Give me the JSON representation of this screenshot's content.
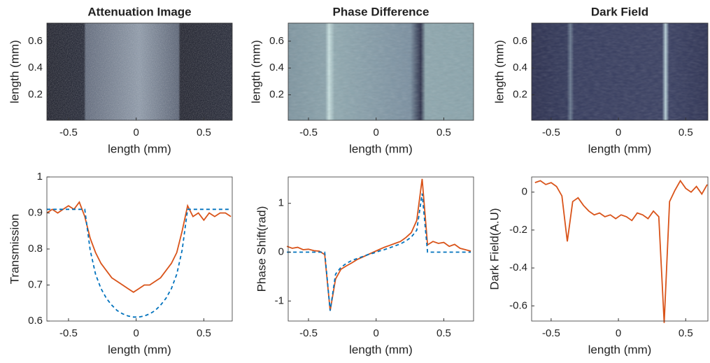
{
  "chart_data": [
    {
      "type": "image",
      "title": "Attenuation Image",
      "xlabel": "length (mm)",
      "ylabel": "length (mm)",
      "xlim": [
        -0.66,
        0.71
      ],
      "ylim": [
        0.01,
        0.735
      ],
      "xticks": [
        -0.5,
        0,
        0.5
      ],
      "yticks": [
        0.2,
        0.4,
        0.6
      ]
    },
    {
      "type": "image",
      "title": "Phase Difference",
      "xlabel": "length (mm)",
      "ylabel": "length (mm)",
      "xlim": [
        -0.65,
        0.72
      ],
      "ylim": [
        0.01,
        0.735
      ],
      "xticks": [
        -0.5,
        0,
        0.5
      ],
      "yticks": [
        0.2,
        0.4,
        0.6
      ]
    },
    {
      "type": "image",
      "title": "Dark Field",
      "xlabel": "length (mm)",
      "ylabel": "length (mm)",
      "xlim": [
        -0.645,
        0.665
      ],
      "ylim": [
        0.01,
        0.735
      ],
      "xticks": [
        -0.5,
        0,
        0.5
      ],
      "yticks": [
        0.2,
        0.4,
        0.6
      ]
    },
    {
      "type": "line",
      "xlabel": "length (mm)",
      "ylabel": "Transmission",
      "xlim": [
        -0.66,
        0.71
      ],
      "ylim": [
        0.6,
        1
      ],
      "xticks": [
        -0.5,
        0,
        0.5
      ],
      "yticks": [
        0.6,
        0.7,
        0.8,
        0.9,
        1
      ],
      "x": [
        -0.66,
        -0.62,
        -0.58,
        -0.54,
        -0.5,
        -0.46,
        -0.42,
        -0.38,
        -0.34,
        -0.3,
        -0.26,
        -0.22,
        -0.18,
        -0.14,
        -0.1,
        -0.06,
        -0.02,
        0.02,
        0.06,
        0.1,
        0.14,
        0.18,
        0.22,
        0.26,
        0.3,
        0.34,
        0.38,
        0.42,
        0.46,
        0.5,
        0.54,
        0.58,
        0.62,
        0.66,
        0.7
      ],
      "series": [
        {
          "color": "#d95319",
          "linestyle": "solid",
          "values": [
            0.9,
            0.91,
            0.9,
            0.91,
            0.92,
            0.91,
            0.93,
            0.89,
            0.83,
            0.79,
            0.76,
            0.74,
            0.72,
            0.71,
            0.7,
            0.69,
            0.68,
            0.69,
            0.7,
            0.7,
            0.71,
            0.72,
            0.74,
            0.76,
            0.79,
            0.85,
            0.92,
            0.89,
            0.9,
            0.88,
            0.9,
            0.89,
            0.9,
            0.9,
            0.89
          ]
        },
        {
          "color": "#0072bd",
          "linestyle": "dashed",
          "values": [
            0.91,
            0.91,
            0.91,
            0.91,
            0.91,
            0.91,
            0.91,
            0.91,
            0.797,
            0.73,
            0.69,
            0.663,
            0.644,
            0.629,
            0.62,
            0.614,
            0.611,
            0.611,
            0.614,
            0.62,
            0.629,
            0.644,
            0.663,
            0.69,
            0.73,
            0.797,
            0.91,
            0.91,
            0.91,
            0.91,
            0.91,
            0.91,
            0.91,
            0.91,
            0.91
          ]
        }
      ]
    },
    {
      "type": "line",
      "xlabel": "length (mm)",
      "ylabel": "Phase Shift(rad)",
      "xlim": [
        -0.65,
        0.72
      ],
      "ylim": [
        -1.41,
        1.54
      ],
      "xticks": [
        -0.5,
        0,
        0.5
      ],
      "yticks": [
        -1,
        0,
        1
      ],
      "x": [
        -0.66,
        -0.62,
        -0.58,
        -0.54,
        -0.5,
        -0.46,
        -0.42,
        -0.38,
        -0.34,
        -0.3,
        -0.26,
        -0.22,
        -0.18,
        -0.14,
        -0.1,
        -0.06,
        -0.02,
        0.02,
        0.06,
        0.1,
        0.14,
        0.18,
        0.22,
        0.26,
        0.3,
        0.34,
        0.38,
        0.42,
        0.46,
        0.5,
        0.54,
        0.58,
        0.62,
        0.66,
        0.7
      ],
      "series": [
        {
          "color": "#d95319",
          "linestyle": "solid",
          "values": [
            0.12,
            0.08,
            0.1,
            0.05,
            0.06,
            0.03,
            0.02,
            -0.05,
            -1.2,
            -0.55,
            -0.35,
            -0.28,
            -0.22,
            -0.15,
            -0.1,
            -0.05,
            0,
            0.05,
            0.1,
            0.14,
            0.18,
            0.22,
            0.3,
            0.4,
            0.65,
            1.5,
            0.15,
            0.22,
            0.18,
            0.2,
            0.12,
            0.16,
            0.08,
            0.05,
            0.02
          ]
        },
        {
          "color": "#0072bd",
          "linestyle": "dashed",
          "values": [
            0,
            0,
            0,
            0,
            0,
            0,
            0,
            0,
            -1.2,
            -0.45,
            -0.31,
            -0.23,
            -0.17,
            -0.13,
            -0.09,
            -0.05,
            -0.02,
            0.02,
            0.05,
            0.09,
            0.13,
            0.17,
            0.23,
            0.31,
            0.45,
            1.2,
            0,
            0,
            0,
            0,
            0,
            0,
            0,
            0,
            0
          ]
        }
      ]
    },
    {
      "type": "line",
      "xlabel": "length (mm)",
      "ylabel": "Dark Field(A.U)",
      "xlim": [
        -0.645,
        0.665
      ],
      "ylim": [
        -0.68,
        0.08
      ],
      "xticks": [
        -0.5,
        0,
        0.5
      ],
      "yticks": [
        -0.6,
        -0.4,
        -0.2,
        0
      ],
      "x": [
        -0.62,
        -0.58,
        -0.54,
        -0.5,
        -0.46,
        -0.42,
        -0.38,
        -0.34,
        -0.3,
        -0.26,
        -0.22,
        -0.18,
        -0.14,
        -0.1,
        -0.06,
        -0.02,
        0.02,
        0.06,
        0.1,
        0.14,
        0.18,
        0.22,
        0.26,
        0.3,
        0.34,
        0.38,
        0.42,
        0.46,
        0.5,
        0.54,
        0.58,
        0.62,
        0.66
      ],
      "series": [
        {
          "color": "#d95319",
          "linestyle": "solid",
          "values": [
            0.05,
            0.06,
            0.04,
            0.05,
            0.03,
            -0.02,
            -0.26,
            -0.05,
            -0.03,
            -0.07,
            -0.1,
            -0.12,
            -0.11,
            -0.13,
            -0.12,
            -0.14,
            -0.12,
            -0.13,
            -0.15,
            -0.11,
            -0.12,
            -0.14,
            -0.1,
            -0.13,
            -0.69,
            -0.05,
            0.01,
            0.06,
            0.02,
            0,
            0.03,
            -0.01,
            0.04
          ]
        }
      ]
    }
  ]
}
